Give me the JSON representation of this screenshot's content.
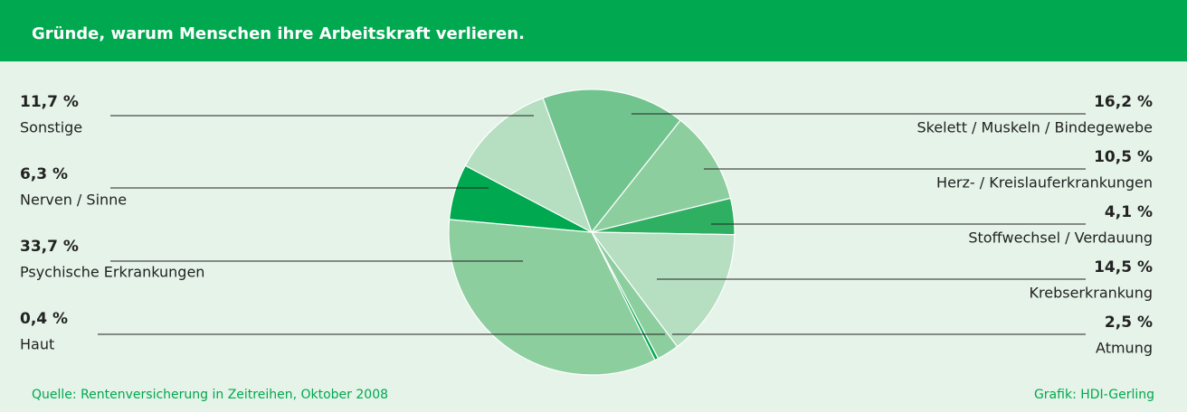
{
  "chart_data": {
    "type": "pie",
    "title": "Gründe, warum Menschen ihre Arbeitskraft verlieren.",
    "categories": [
      "Skelett / Muskeln / Bindegewebe",
      "Herz- / Kreislauferkrankungen",
      "Stoffwechsel / Verdauung",
      "Krebserkrankung",
      "Atmung",
      "Haut",
      "Psychische Erkrankungen",
      "Nerven / Sinne",
      "Sonstige"
    ],
    "values": [
      16.2,
      10.5,
      4.1,
      14.5,
      2.5,
      0.4,
      33.7,
      6.3,
      11.7
    ],
    "value_labels": [
      "16,2 %",
      "10,5 %",
      "4,1 %",
      "14,5 %",
      "2,5 %",
      "0,4 %",
      "33,7 %",
      "6,3 %",
      "11,7 %"
    ],
    "colors": [
      "#72c48e",
      "#8dce9f",
      "#2faf62",
      "#b5dfc0",
      "#8dce9f",
      "#00a84f",
      "#8dce9f",
      "#00a84f",
      "#b5dfc0"
    ],
    "source": "Quelle: Rentenversicherung in Zeitreihen, Oktober 2008",
    "credit": "Grafik: HDI-Gerling"
  }
}
